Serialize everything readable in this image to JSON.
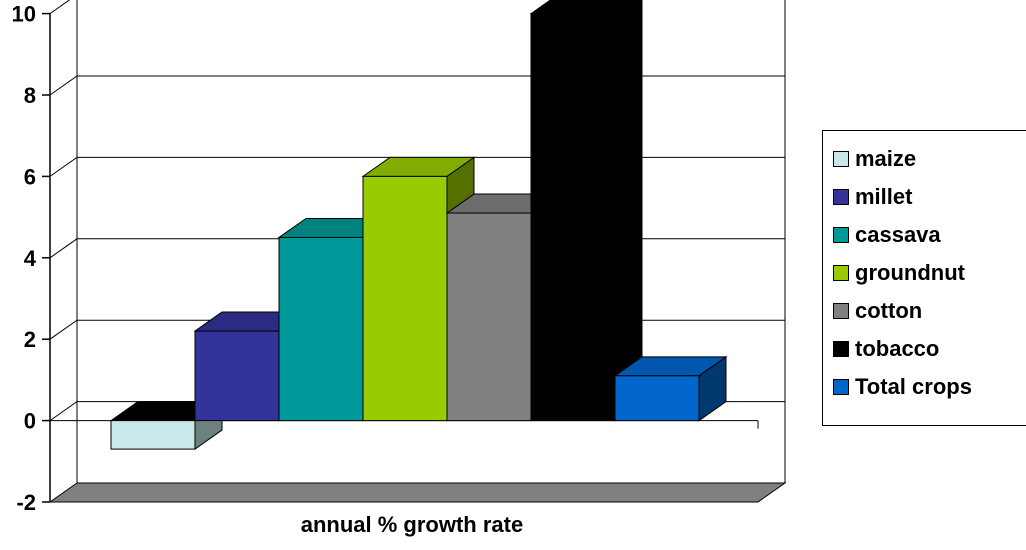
{
  "chart_data": {
    "type": "bar",
    "title": "",
    "xlabel": "annual % growth rate",
    "ylabel": "",
    "ylim": [
      -2,
      10
    ],
    "yticks": [
      -2,
      0,
      2,
      4,
      6,
      8,
      10
    ],
    "ytick_labels": [
      "-2",
      "0",
      "2",
      "4",
      "6",
      "8",
      "10"
    ],
    "grid": true,
    "style": "3d",
    "legend_position": "right",
    "series": [
      {
        "name": "maize",
        "value": -0.7,
        "color": "#c9e8ea"
      },
      {
        "name": "millet",
        "value": 2.2,
        "color": "#333399"
      },
      {
        "name": "cassava",
        "value": 4.5,
        "color": "#00999a"
      },
      {
        "name": "groundnut",
        "value": 6.0,
        "color": "#99cc00"
      },
      {
        "name": "cotton",
        "value": 5.1,
        "color": "#808080"
      },
      {
        "name": "tobacco",
        "value": 10.0,
        "color": "#000000"
      },
      {
        "name": "Total crops",
        "value": 1.1,
        "color": "#0066cc"
      }
    ]
  },
  "colors": {
    "floor": "#808080",
    "gridline": "#000000",
    "axis": "#000000",
    "background": "#ffffff"
  }
}
